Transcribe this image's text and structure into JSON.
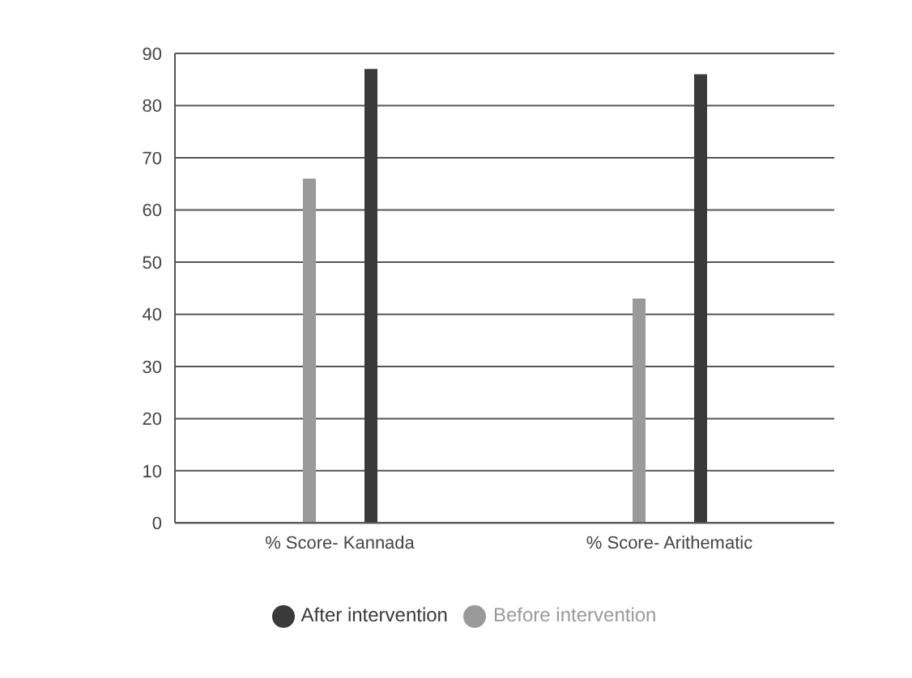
{
  "chart_data": {
    "type": "bar",
    "categories": [
      "% Score- Kannada",
      "% Score- Arithematic"
    ],
    "series": [
      {
        "name": "Before intervention",
        "color": "#9a9a9a",
        "values": [
          66,
          43
        ]
      },
      {
        "name": "After intervention",
        "color": "#3a3a3a",
        "values": [
          87,
          86
        ]
      }
    ],
    "ylim": [
      0,
      90
    ],
    "yticks": [
      0,
      10,
      20,
      30,
      40,
      50,
      60,
      70,
      80,
      90
    ],
    "grid": "y",
    "legend": "bottom"
  }
}
